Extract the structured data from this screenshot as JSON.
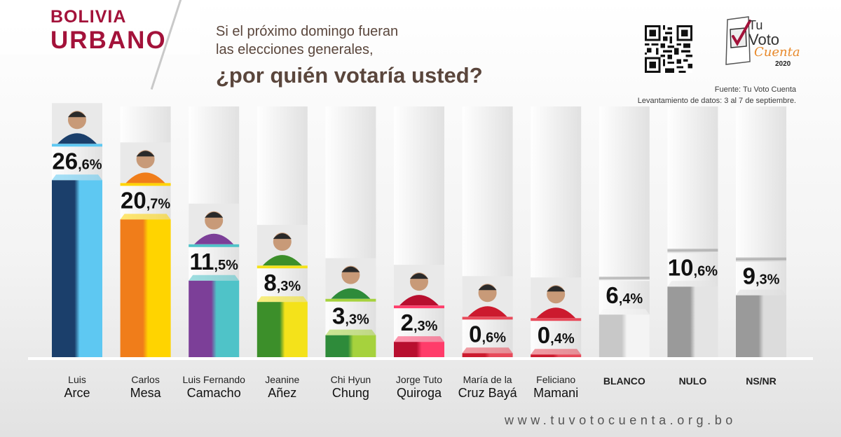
{
  "header": {
    "region_line1": "BOLIVIA",
    "region_line2": "URBANO",
    "question_line1": "Si el próximo domingo fueran",
    "question_line2": "las elecciones generales,",
    "question_line3": "¿por quién votaría usted?",
    "logo_line1": "Tu",
    "logo_line2": "Voto",
    "logo_line3": "Cuenta",
    "logo_year": "2020",
    "source": "Fuente: Tu Voto Cuenta",
    "fieldwork": "Levantamiento de datos: 3 al 7 de septiembre."
  },
  "colors": {
    "brand": "#a3123a",
    "question": "#5a463c",
    "logo_accent": "#e8892b"
  },
  "footer": {
    "website": "www.tuvotocuenta.org.bo"
  },
  "chart_data": {
    "type": "bar",
    "title": "",
    "xlabel": "",
    "ylabel": "",
    "ylim": [
      0,
      30
    ],
    "grid": false,
    "categories": [
      {
        "line1": "Luis",
        "line2": "Arce"
      },
      {
        "line1": "Carlos",
        "line2": "Mesa"
      },
      {
        "line1": "Luis Fernando",
        "line2": "Camacho"
      },
      {
        "line1": "Jeanine",
        "line2": "Añez"
      },
      {
        "line1": "Chi Hyun",
        "line2": "Chung"
      },
      {
        "line1": "Jorge Tuto",
        "line2": "Quiroga"
      },
      {
        "line1": "María de la",
        "line2": "Cruz Bayá"
      },
      {
        "line1": "Feliciano",
        "line2": "Mamani"
      },
      {
        "line1": "BLANCO",
        "line2": ""
      },
      {
        "line1": "NULO",
        "line2": ""
      },
      {
        "line1": "NS/NR",
        "line2": ""
      }
    ],
    "values": [
      26.6,
      20.7,
      11.5,
      8.3,
      3.3,
      2.3,
      0.6,
      0.4,
      6.4,
      10.6,
      9.3
    ],
    "value_labels": [
      {
        "int": "26",
        "dec": ",6%"
      },
      {
        "int": "20",
        "dec": ",7%"
      },
      {
        "int": "11",
        "dec": ",5%"
      },
      {
        "int": "8",
        "dec": ",3%"
      },
      {
        "int": "3",
        "dec": ",3%"
      },
      {
        "int": "2",
        "dec": ",3%"
      },
      {
        "int": "0",
        "dec": ",6%"
      },
      {
        "int": "0",
        "dec": ",4%"
      },
      {
        "int": "6",
        "dec": ",4%"
      },
      {
        "int": "10",
        "dec": ",6%"
      },
      {
        "int": "9",
        "dec": ",3%"
      }
    ],
    "bar_colors": [
      [
        "#1b3f6b",
        "#5ec8f2"
      ],
      [
        "#f07d1a",
        "#ffd400"
      ],
      [
        "#7c3f98",
        "#4fc3c8"
      ],
      [
        "#3c8f2a",
        "#f4e21a"
      ],
      [
        "#2e8b3a",
        "#a6d23d"
      ],
      [
        "#b80f2f",
        "#ff3c6a"
      ],
      [
        "#cc1a2e",
        "#e84a5a"
      ],
      [
        "#cc1a2e",
        "#e84a5a"
      ],
      [
        "#c8c8c8",
        "#f4f4f4"
      ],
      [
        "#9a9a9a",
        "#e4e4e4"
      ],
      [
        "#9a9a9a",
        "#dcdcdc"
      ]
    ],
    "has_photo": [
      true,
      true,
      true,
      true,
      true,
      true,
      true,
      true,
      false,
      false,
      false
    ]
  }
}
